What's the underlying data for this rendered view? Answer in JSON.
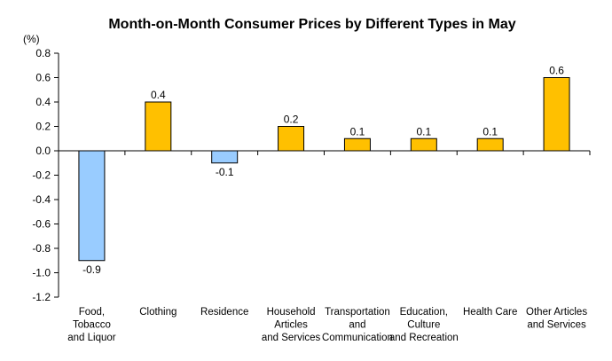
{
  "chart_data": {
    "type": "bar",
    "title": "Month-on-Month Consumer Prices by Different Types in May",
    "unit_label": "(%)",
    "ylim": [
      -1.2,
      0.8
    ],
    "ytick_step": 0.2,
    "grid": false,
    "categories": [
      [
        "Food,",
        "Tobacco",
        "and Liquor"
      ],
      [
        "Clothing"
      ],
      [
        "Residence"
      ],
      [
        "Household",
        "Articles",
        "and Services"
      ],
      [
        "Transportation",
        "and",
        "Communication"
      ],
      [
        "Education,",
        "Culture",
        "and Recreation"
      ],
      [
        "Health Care"
      ],
      [
        "Other Articles",
        "and Services"
      ]
    ],
    "values": [
      -0.9,
      0.4,
      -0.1,
      0.2,
      0.1,
      0.1,
      0.1,
      0.6
    ],
    "data_labels": [
      "-0.9",
      "0.4",
      "-0.1",
      "0.2",
      "0.1",
      "0.1",
      "0.1",
      "0.6"
    ],
    "colors": {
      "positive": "#FFC000",
      "negative": "#99CCFF",
      "outline": "#000000"
    }
  }
}
